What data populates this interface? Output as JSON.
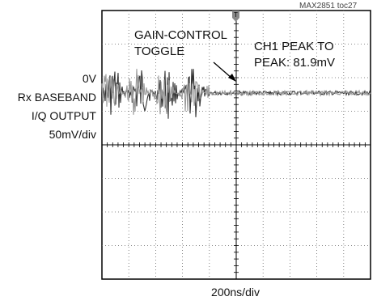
{
  "figure_id": "MAX2851 toc27",
  "chart_data": {
    "type": "line",
    "title": "",
    "xlabel": "200ns/div",
    "ylabel_lines": [
      "0V",
      "Rx BASEBAND",
      "I/Q OUTPUT",
      "50mV/div"
    ],
    "annotations": {
      "gain_control": [
        "GAIN-CONTROL",
        "TOGGLE"
      ],
      "peak_to_peak": [
        "CH1 PEAK TO",
        "PEAK: 81.9mV"
      ]
    },
    "trigger_marker": "T",
    "grid": {
      "divisions_x": 10,
      "divisions_y": 8,
      "on": true
    },
    "xlim": [
      0,
      10
    ],
    "ylim": [
      -4,
      4
    ],
    "toggle_time_div": 4.0,
    "series": [
      {
        "color": "#333333",
        "values_before_toggle_div": {
          "center": 0,
          "pk_pk": 1.64
        },
        "values_after_toggle_div": {
          "center": 0,
          "pk_pk": 0.12
        }
      },
      {
        "color": "#999999",
        "values_before_toggle_div": {
          "center": 0,
          "pk_pk": 1.64
        },
        "values_after_toggle_div": {
          "center": 0,
          "pk_pk": 0.14
        }
      }
    ]
  }
}
